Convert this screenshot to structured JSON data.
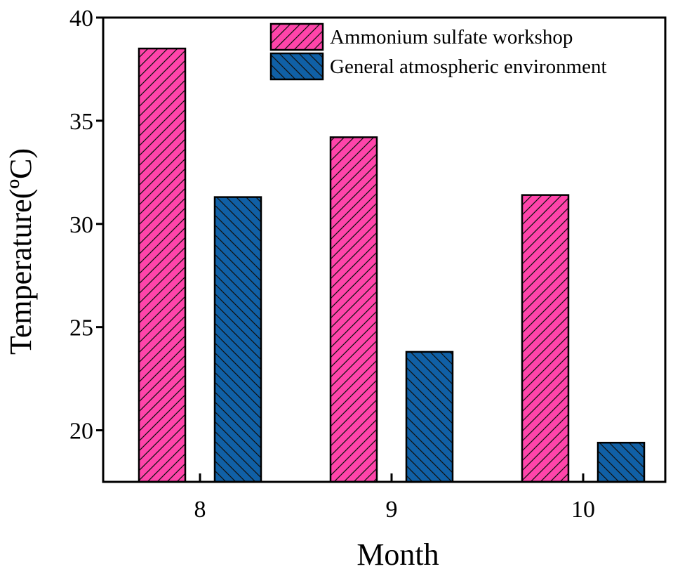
{
  "chart_data": {
    "type": "bar",
    "categories": [
      "8",
      "9",
      "10"
    ],
    "series": [
      {
        "name": "Ammonium sulfate workshop",
        "values": [
          38.5,
          34.2,
          31.4
        ],
        "color": "#ff44aa",
        "hatch": "forward"
      },
      {
        "name": "General atmospheric environment",
        "values": [
          31.3,
          23.8,
          19.4
        ],
        "color": "#1060a6",
        "hatch": "backward"
      }
    ],
    "xlabel": "Month",
    "ylabel": "Temperature(ºC)",
    "ylim": [
      17.5,
      40
    ],
    "yticks": [
      20,
      25,
      30,
      35,
      40
    ],
    "legend_position": "top-right",
    "grid": false
  }
}
